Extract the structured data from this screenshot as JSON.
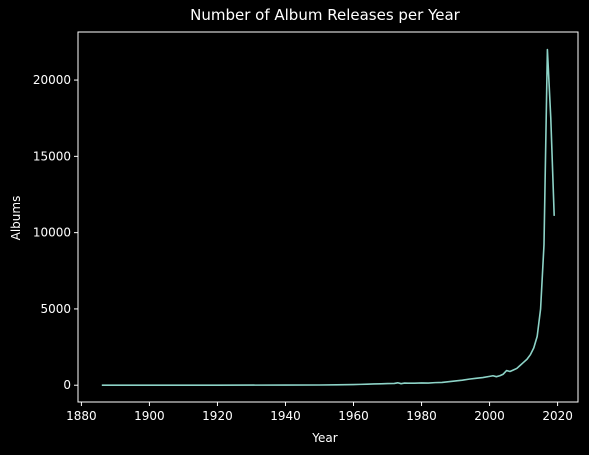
{
  "chart_data": {
    "type": "line",
    "title": "Number of Album Releases per Year",
    "xlabel": "Year",
    "ylabel": "Albums",
    "xlim": [
      1879,
      2026
    ],
    "ylim": [
      -1100,
      23150
    ],
    "x_ticks": [
      1880,
      1900,
      1920,
      1940,
      1960,
      1980,
      2000,
      2020
    ],
    "y_ticks": [
      0,
      5000,
      10000,
      15000,
      20000
    ],
    "grid": false,
    "legend": "none",
    "colors": {
      "background": "#000000",
      "axes": "#ffffff",
      "text": "#ffffff",
      "line": "#8dd3c7"
    },
    "series": [
      {
        "x": [
          1886,
          1900,
          1920,
          1940,
          1950,
          1955,
          1960,
          1962,
          1964,
          1966,
          1968,
          1970,
          1972,
          1973,
          1974,
          1975,
          1976,
          1978,
          1980,
          1982,
          1984,
          1986,
          1988,
          1990,
          1992,
          1994,
          1996,
          1998,
          2000,
          2001,
          2002,
          2003,
          2004,
          2005,
          2006,
          2007,
          2008,
          2009,
          2010,
          2011,
          2012,
          2013,
          2014,
          2015,
          2016,
          2017,
          2018,
          2019
        ],
        "y": [
          5,
          5,
          5,
          8,
          15,
          25,
          40,
          55,
          70,
          85,
          95,
          105,
          115,
          160,
          100,
          140,
          130,
          135,
          150,
          140,
          170,
          180,
          230,
          280,
          330,
          400,
          450,
          500,
          580,
          620,
          560,
          620,
          720,
          960,
          900,
          1000,
          1100,
          1300,
          1500,
          1700,
          2000,
          2450,
          3200,
          5000,
          9200,
          22000,
          17500,
          11100
        ]
      }
    ]
  }
}
